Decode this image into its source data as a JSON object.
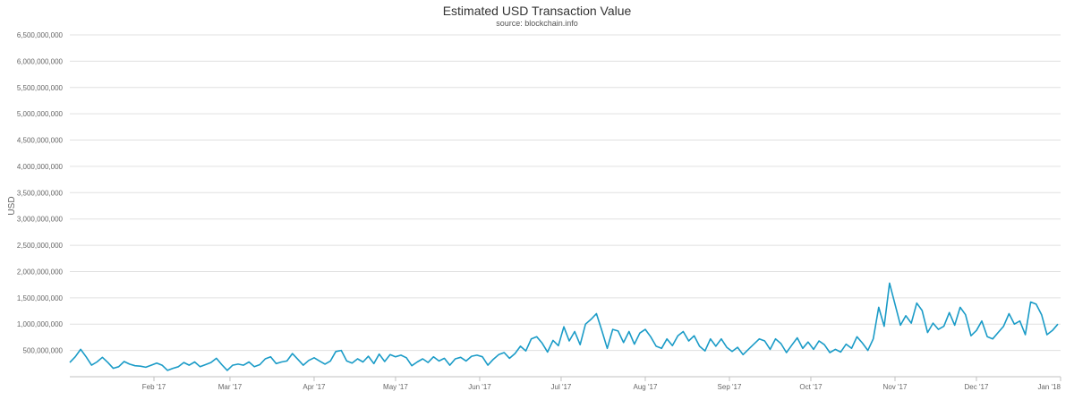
{
  "chart_data": {
    "type": "line",
    "title": "Estimated USD Transaction Value",
    "subtitle": "source: blockchain.info",
    "ylabel": "USD",
    "xlabel": "",
    "ylim": [
      0,
      6500000000
    ],
    "y_ticks": [
      {
        "value": 500000000,
        "label": "500,000,000"
      },
      {
        "value": 1000000000,
        "label": "1,000,000,000"
      },
      {
        "value": 1500000000,
        "label": "1,500,000,000"
      },
      {
        "value": 2000000000,
        "label": "2,000,000,000"
      },
      {
        "value": 2500000000,
        "label": "2,500,000,000"
      },
      {
        "value": 3000000000,
        "label": "3,000,000,000"
      },
      {
        "value": 3500000000,
        "label": "3,500,000,000"
      },
      {
        "value": 4000000000,
        "label": "4,000,000,000"
      },
      {
        "value": 4500000000,
        "label": "4,500,000,000"
      },
      {
        "value": 5000000000,
        "label": "5,000,000,000"
      },
      {
        "value": 5500000000,
        "label": "5,500,000,000"
      },
      {
        "value": 6000000000,
        "label": "6,000,000,000"
      },
      {
        "value": 6500000000,
        "label": "6,500,000,000"
      }
    ],
    "x_range": [
      "2017-01-01",
      "2018-01-01"
    ],
    "x_ticks": [
      {
        "date": "2017-02-01",
        "label": "Feb '17"
      },
      {
        "date": "2017-03-01",
        "label": "Mar '17"
      },
      {
        "date": "2017-04-01",
        "label": "Apr '17"
      },
      {
        "date": "2017-05-01",
        "label": "May '17"
      },
      {
        "date": "2017-06-01",
        "label": "Jun '17"
      },
      {
        "date": "2017-07-01",
        "label": "Jul '17"
      },
      {
        "date": "2017-08-01",
        "label": "Aug '17"
      },
      {
        "date": "2017-09-01",
        "label": "Sep '17"
      },
      {
        "date": "2017-10-01",
        "label": "Oct '17"
      },
      {
        "date": "2017-11-01",
        "label": "Nov '17"
      },
      {
        "date": "2017-12-01",
        "label": "Dec '17"
      },
      {
        "date": "2018-01-01",
        "label": "Jan '18"
      }
    ],
    "grid": true,
    "legend": "none",
    "colors": {
      "line": "#1a9bc7",
      "grid": "#e0e0e0",
      "axis_text": "#666666"
    },
    "series": [
      {
        "values": [
          [
            "2017-01-01",
            270000000
          ],
          [
            "2017-01-03",
            380000000
          ],
          [
            "2017-01-05",
            520000000
          ],
          [
            "2017-01-07",
            380000000
          ],
          [
            "2017-01-09",
            220000000
          ],
          [
            "2017-01-11",
            280000000
          ],
          [
            "2017-01-13",
            370000000
          ],
          [
            "2017-01-15",
            270000000
          ],
          [
            "2017-01-17",
            160000000
          ],
          [
            "2017-01-19",
            190000000
          ],
          [
            "2017-01-21",
            290000000
          ],
          [
            "2017-01-23",
            240000000
          ],
          [
            "2017-01-25",
            210000000
          ],
          [
            "2017-01-27",
            200000000
          ],
          [
            "2017-01-29",
            180000000
          ],
          [
            "2017-01-31",
            220000000
          ],
          [
            "2017-02-02",
            260000000
          ],
          [
            "2017-02-04",
            220000000
          ],
          [
            "2017-02-06",
            120000000
          ],
          [
            "2017-02-08",
            160000000
          ],
          [
            "2017-02-10",
            190000000
          ],
          [
            "2017-02-12",
            270000000
          ],
          [
            "2017-02-14",
            220000000
          ],
          [
            "2017-02-16",
            280000000
          ],
          [
            "2017-02-18",
            190000000
          ],
          [
            "2017-02-20",
            230000000
          ],
          [
            "2017-02-22",
            270000000
          ],
          [
            "2017-02-24",
            350000000
          ],
          [
            "2017-02-26",
            230000000
          ],
          [
            "2017-02-28",
            120000000
          ],
          [
            "2017-03-02",
            220000000
          ],
          [
            "2017-03-04",
            240000000
          ],
          [
            "2017-03-06",
            220000000
          ],
          [
            "2017-03-08",
            280000000
          ],
          [
            "2017-03-10",
            190000000
          ],
          [
            "2017-03-12",
            230000000
          ],
          [
            "2017-03-14",
            340000000
          ],
          [
            "2017-03-16",
            380000000
          ],
          [
            "2017-03-18",
            250000000
          ],
          [
            "2017-03-20",
            280000000
          ],
          [
            "2017-03-22",
            300000000
          ],
          [
            "2017-03-24",
            440000000
          ],
          [
            "2017-03-26",
            330000000
          ],
          [
            "2017-03-28",
            220000000
          ],
          [
            "2017-03-30",
            310000000
          ],
          [
            "2017-04-01",
            360000000
          ],
          [
            "2017-04-03",
            300000000
          ],
          [
            "2017-04-05",
            240000000
          ],
          [
            "2017-04-07",
            300000000
          ],
          [
            "2017-04-09",
            480000000
          ],
          [
            "2017-04-11",
            500000000
          ],
          [
            "2017-04-13",
            300000000
          ],
          [
            "2017-04-15",
            260000000
          ],
          [
            "2017-04-17",
            340000000
          ],
          [
            "2017-04-19",
            280000000
          ],
          [
            "2017-04-21",
            390000000
          ],
          [
            "2017-04-23",
            250000000
          ],
          [
            "2017-04-25",
            430000000
          ],
          [
            "2017-04-27",
            290000000
          ],
          [
            "2017-04-29",
            420000000
          ],
          [
            "2017-05-01",
            380000000
          ],
          [
            "2017-05-03",
            410000000
          ],
          [
            "2017-05-05",
            360000000
          ],
          [
            "2017-05-07",
            210000000
          ],
          [
            "2017-05-09",
            280000000
          ],
          [
            "2017-05-11",
            340000000
          ],
          [
            "2017-05-13",
            270000000
          ],
          [
            "2017-05-15",
            380000000
          ],
          [
            "2017-05-17",
            300000000
          ],
          [
            "2017-05-19",
            350000000
          ],
          [
            "2017-05-21",
            220000000
          ],
          [
            "2017-05-23",
            340000000
          ],
          [
            "2017-05-25",
            370000000
          ],
          [
            "2017-05-27",
            300000000
          ],
          [
            "2017-05-29",
            390000000
          ],
          [
            "2017-05-31",
            410000000
          ],
          [
            "2017-06-02",
            380000000
          ],
          [
            "2017-06-04",
            220000000
          ],
          [
            "2017-06-06",
            330000000
          ],
          [
            "2017-06-08",
            420000000
          ],
          [
            "2017-06-10",
            460000000
          ],
          [
            "2017-06-12",
            350000000
          ],
          [
            "2017-06-14",
            440000000
          ],
          [
            "2017-06-16",
            580000000
          ],
          [
            "2017-06-18",
            490000000
          ],
          [
            "2017-06-20",
            720000000
          ],
          [
            "2017-06-22",
            760000000
          ],
          [
            "2017-06-24",
            640000000
          ],
          [
            "2017-06-26",
            470000000
          ],
          [
            "2017-06-28",
            690000000
          ],
          [
            "2017-06-30",
            590000000
          ],
          [
            "2017-07-02",
            950000000
          ],
          [
            "2017-07-04",
            680000000
          ],
          [
            "2017-07-06",
            860000000
          ],
          [
            "2017-07-08",
            610000000
          ],
          [
            "2017-07-10",
            1000000000
          ],
          [
            "2017-07-12",
            1090000000
          ],
          [
            "2017-07-14",
            1200000000
          ],
          [
            "2017-07-16",
            880000000
          ],
          [
            "2017-07-18",
            540000000
          ],
          [
            "2017-07-20",
            900000000
          ],
          [
            "2017-07-22",
            870000000
          ],
          [
            "2017-07-24",
            650000000
          ],
          [
            "2017-07-26",
            860000000
          ],
          [
            "2017-07-28",
            620000000
          ],
          [
            "2017-07-30",
            830000000
          ],
          [
            "2017-08-01",
            900000000
          ],
          [
            "2017-08-03",
            760000000
          ],
          [
            "2017-08-05",
            580000000
          ],
          [
            "2017-08-07",
            540000000
          ],
          [
            "2017-08-09",
            720000000
          ],
          [
            "2017-08-11",
            590000000
          ],
          [
            "2017-08-13",
            780000000
          ],
          [
            "2017-08-15",
            860000000
          ],
          [
            "2017-08-17",
            680000000
          ],
          [
            "2017-08-19",
            780000000
          ],
          [
            "2017-08-21",
            580000000
          ],
          [
            "2017-08-23",
            490000000
          ],
          [
            "2017-08-25",
            720000000
          ],
          [
            "2017-08-27",
            580000000
          ],
          [
            "2017-08-29",
            720000000
          ],
          [
            "2017-08-31",
            560000000
          ],
          [
            "2017-09-02",
            480000000
          ],
          [
            "2017-09-04",
            560000000
          ],
          [
            "2017-09-06",
            420000000
          ],
          [
            "2017-09-08",
            520000000
          ],
          [
            "2017-09-10",
            620000000
          ],
          [
            "2017-09-12",
            720000000
          ],
          [
            "2017-09-14",
            680000000
          ],
          [
            "2017-09-16",
            520000000
          ],
          [
            "2017-09-18",
            720000000
          ],
          [
            "2017-09-20",
            630000000
          ],
          [
            "2017-09-22",
            460000000
          ],
          [
            "2017-09-24",
            600000000
          ],
          [
            "2017-09-26",
            740000000
          ],
          [
            "2017-09-28",
            540000000
          ],
          [
            "2017-09-30",
            660000000
          ],
          [
            "2017-10-02",
            520000000
          ],
          [
            "2017-10-04",
            680000000
          ],
          [
            "2017-10-06",
            610000000
          ],
          [
            "2017-10-08",
            460000000
          ],
          [
            "2017-10-10",
            520000000
          ],
          [
            "2017-10-12",
            470000000
          ],
          [
            "2017-10-14",
            620000000
          ],
          [
            "2017-10-16",
            540000000
          ],
          [
            "2017-10-18",
            760000000
          ],
          [
            "2017-10-20",
            640000000
          ],
          [
            "2017-10-22",
            500000000
          ],
          [
            "2017-10-24",
            720000000
          ],
          [
            "2017-10-26",
            1320000000
          ],
          [
            "2017-10-28",
            960000000
          ],
          [
            "2017-10-30",
            1780000000
          ],
          [
            "2017-11-01",
            1380000000
          ],
          [
            "2017-11-03",
            980000000
          ],
          [
            "2017-11-05",
            1160000000
          ],
          [
            "2017-11-07",
            1020000000
          ],
          [
            "2017-11-09",
            1400000000
          ],
          [
            "2017-11-11",
            1260000000
          ],
          [
            "2017-11-13",
            840000000
          ],
          [
            "2017-11-15",
            1020000000
          ],
          [
            "2017-11-17",
            900000000
          ],
          [
            "2017-11-19",
            960000000
          ],
          [
            "2017-11-21",
            1220000000
          ],
          [
            "2017-11-23",
            980000000
          ],
          [
            "2017-11-25",
            1320000000
          ],
          [
            "2017-11-27",
            1180000000
          ],
          [
            "2017-11-29",
            780000000
          ],
          [
            "2017-12-01",
            880000000
          ],
          [
            "2017-12-03",
            1060000000
          ],
          [
            "2017-12-05",
            760000000
          ],
          [
            "2017-12-07",
            720000000
          ],
          [
            "2017-12-09",
            840000000
          ],
          [
            "2017-12-11",
            960000000
          ],
          [
            "2017-12-13",
            1200000000
          ],
          [
            "2017-12-15",
            1000000000
          ],
          [
            "2017-12-17",
            1060000000
          ],
          [
            "2017-12-19",
            800000000
          ],
          [
            "2017-12-21",
            1420000000
          ],
          [
            "2017-12-23",
            1380000000
          ],
          [
            "2017-12-25",
            1180000000
          ],
          [
            "2017-12-27",
            800000000
          ],
          [
            "2017-12-29",
            880000000
          ],
          [
            "2017-12-31",
            1000000000
          ]
        ]
      }
    ]
  }
}
